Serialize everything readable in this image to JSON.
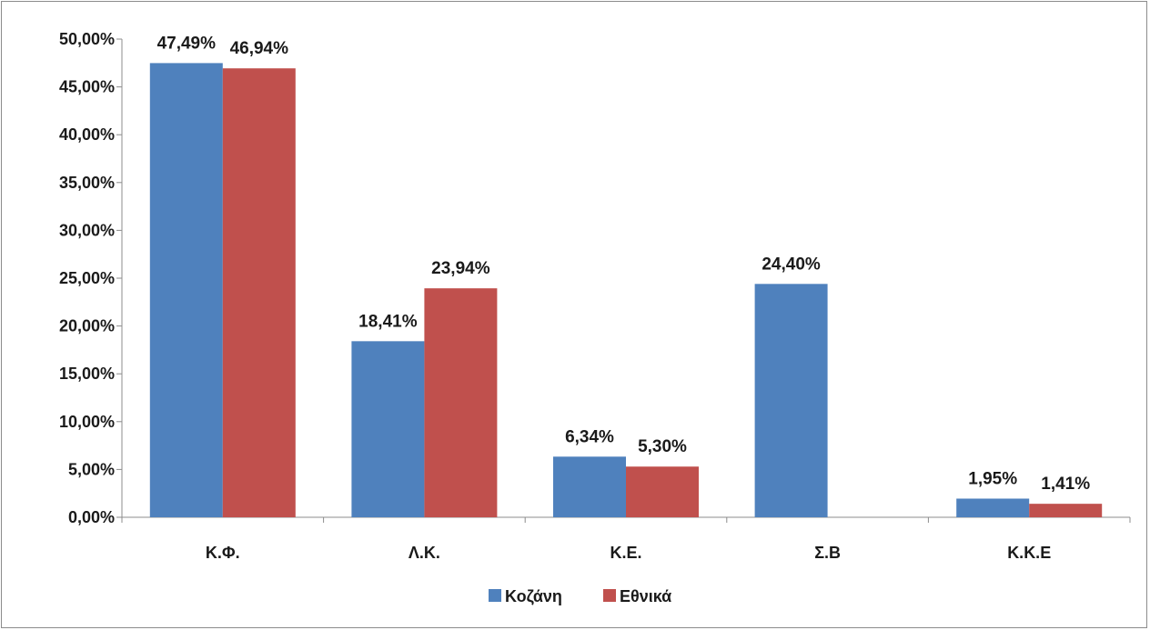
{
  "chart_data": {
    "type": "bar",
    "categories": [
      "Κ.Φ.",
      "Λ.Κ.",
      "Κ.Ε.",
      "Σ.Β",
      "Κ.Κ.Ε"
    ],
    "series": [
      {
        "name": "Κοζάνη",
        "color": "#4f81bd",
        "values": [
          47.49,
          18.41,
          6.34,
          24.4,
          1.95
        ],
        "labels": [
          "47,49%",
          "18,41%",
          "6,34%",
          "24,40%",
          "1,95%"
        ]
      },
      {
        "name": "Εθνικά",
        "color": "#c0504d",
        "values": [
          46.94,
          23.94,
          5.3,
          null,
          1.41
        ],
        "labels": [
          "46,94%",
          "23,94%",
          "5,30%",
          "",
          "1,41%"
        ]
      }
    ],
    "yticks": [
      {
        "value": 0,
        "label": "0,00%"
      },
      {
        "value": 5,
        "label": "5,00%"
      },
      {
        "value": 10,
        "label": "10,00%"
      },
      {
        "value": 15,
        "label": "15,00%"
      },
      {
        "value": 20,
        "label": "20,00%"
      },
      {
        "value": 25,
        "label": "25,00%"
      },
      {
        "value": 30,
        "label": "30,00%"
      },
      {
        "value": 35,
        "label": "35,00%"
      },
      {
        "value": 40,
        "label": "40,00%"
      },
      {
        "value": 45,
        "label": "45,00%"
      },
      {
        "value": 50,
        "label": "50,00%"
      }
    ],
    "ylim": [
      0,
      50
    ],
    "grid": false,
    "legend_position": "bottom"
  }
}
